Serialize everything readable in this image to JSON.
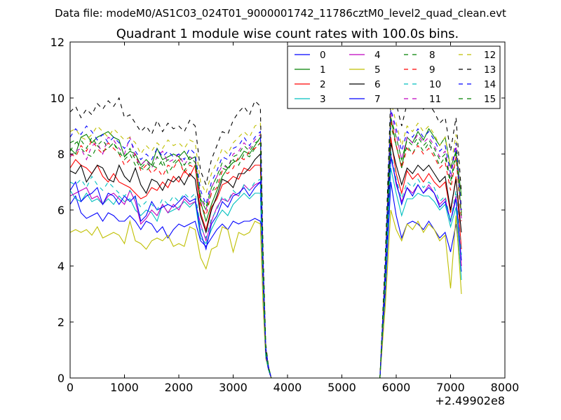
{
  "header": {
    "suptitle": "Data file: modeM0/AS1C03_024T01_9000001742_11786cztM0_level2_quad_clean.evt"
  },
  "chart_data": {
    "type": "line",
    "title": "Quadrant 1 module wise count rates with 100.0s bins.",
    "xlabel": "",
    "ylabel": "",
    "x_offset_label": "+2.49902e8",
    "xlim": [
      0,
      8000
    ],
    "ylim": [
      0,
      12
    ],
    "xticks": [
      0,
      1000,
      2000,
      3000,
      4000,
      5000,
      6000,
      7000,
      8000
    ],
    "yticks": [
      0,
      2,
      4,
      6,
      8,
      10,
      12
    ],
    "grid": false,
    "legend_position": "top-right",
    "legend_columns": 4,
    "series": [
      {
        "name": "0",
        "color": "#0000ff",
        "dash": "solid"
      },
      {
        "name": "1",
        "color": "#008000",
        "dash": "solid"
      },
      {
        "name": "2",
        "color": "#ff0000",
        "dash": "solid"
      },
      {
        "name": "3",
        "color": "#00bfbf",
        "dash": "solid"
      },
      {
        "name": "4",
        "color": "#bf00bf",
        "dash": "solid"
      },
      {
        "name": "5",
        "color": "#bfbf00",
        "dash": "solid"
      },
      {
        "name": "6",
        "color": "#000000",
        "dash": "solid"
      },
      {
        "name": "7",
        "color": "#0000ff",
        "dash": "solid"
      },
      {
        "name": "8",
        "color": "#008000",
        "dash": "dashed"
      },
      {
        "name": "9",
        "color": "#ff0000",
        "dash": "dashed"
      },
      {
        "name": "10",
        "color": "#00bfbf",
        "dash": "dashed"
      },
      {
        "name": "11",
        "color": "#bf00bf",
        "dash": "dashed"
      },
      {
        "name": "12",
        "color": "#bfbf00",
        "dash": "dashed"
      },
      {
        "name": "13",
        "color": "#000000",
        "dash": "dashed"
      },
      {
        "name": "14",
        "color": "#0000ff",
        "dash": "dashed"
      },
      {
        "name": "15",
        "color": "#008000",
        "dash": "dashed"
      }
    ],
    "x_values": [
      0,
      100,
      200,
      300,
      400,
      500,
      600,
      700,
      800,
      900,
      1000,
      1100,
      1200,
      1300,
      1400,
      1500,
      1600,
      1700,
      1800,
      1900,
      2000,
      2100,
      2200,
      2300,
      2400,
      2500,
      2600,
      2700,
      2800,
      2900,
      3000,
      3100,
      3200,
      3300,
      3400,
      3500,
      3550,
      3600,
      3650,
      3700,
      3800,
      4000,
      5000,
      5700,
      5800,
      5900,
      6000,
      6100,
      6200,
      6300,
      6400,
      6500,
      6600,
      6700,
      6800,
      6900,
      7000,
      7100,
      7200
    ],
    "y_values": [
      [
        6.2,
        6.5,
        5.9,
        5.7,
        5.8,
        5.9,
        5.6,
        5.9,
        5.8,
        5.6,
        5.6,
        5.8,
        5.6,
        5.3,
        5.6,
        5.5,
        5.2,
        5.4,
        5.0,
        5.3,
        5.5,
        5.4,
        5.5,
        5.6,
        4.9,
        4.7,
        5.0,
        5.3,
        5.5,
        5.3,
        5.6,
        5.5,
        5.6,
        5.6,
        5.7,
        5.6,
        3.0,
        0.8,
        0.3,
        0,
        0,
        0,
        0,
        0,
        3.0,
        7.0,
        5.8,
        5.0,
        5.5,
        5.6,
        5.5,
        5.3,
        5.6,
        5.3,
        5.0,
        5.2,
        4.5,
        5.5,
        3.8
      ],
      [
        8.2,
        8.0,
        8.6,
        8.7,
        8.4,
        8.6,
        8.7,
        8.8,
        8.6,
        8.5,
        7.9,
        8.1,
        8.0,
        7.6,
        7.8,
        7.6,
        8.2,
        7.8,
        7.9,
        8.0,
        7.9,
        8.1,
        7.8,
        7.9,
        6.3,
        5.6,
        6.2,
        6.7,
        7.2,
        7.5,
        7.7,
        7.8,
        8.1,
        8.0,
        8.3,
        8.6,
        4.0,
        1.0,
        0.4,
        0,
        0,
        0,
        0,
        0,
        3.8,
        9.3,
        8.3,
        7.5,
        8.6,
        8.4,
        8.8,
        8.5,
        8.9,
        8.6,
        8.3,
        8.6,
        7.5,
        8.1,
        6.5
      ],
      [
        7.5,
        7.8,
        7.6,
        7.5,
        7.3,
        7.6,
        7.2,
        7.0,
        7.3,
        7.0,
        6.9,
        6.8,
        6.6,
        6.4,
        6.5,
        6.8,
        6.7,
        7.0,
        6.8,
        7.2,
        7.0,
        7.4,
        7.2,
        7.6,
        5.9,
        5.3,
        6.1,
        6.4,
        6.9,
        7.0,
        7.2,
        7.1,
        7.5,
        7.4,
        7.6,
        7.6,
        3.6,
        0.9,
        0.3,
        0,
        0,
        0,
        0,
        0,
        3.5,
        8.6,
        7.3,
        6.6,
        7.4,
        7.1,
        7.3,
        7.0,
        7.3,
        7.0,
        6.8,
        7.0,
        5.9,
        7.2,
        4.6
      ],
      [
        6.7,
        6.4,
        6.3,
        6.6,
        6.3,
        6.4,
        6.2,
        6.4,
        6.2,
        6.5,
        6.3,
        6.4,
        6.0,
        5.8,
        6.0,
        5.9,
        5.6,
        6.2,
        5.9,
        6.0,
        6.1,
        6.3,
        6.1,
        6.3,
        5.0,
        4.8,
        5.3,
        5.7,
        6.0,
        5.8,
        6.2,
        6.4,
        6.6,
        6.4,
        6.6,
        6.6,
        3.2,
        0.8,
        0.3,
        0,
        0,
        0,
        0,
        0,
        3.2,
        7.5,
        6.6,
        5.8,
        6.4,
        6.4,
        6.6,
        6.5,
        6.5,
        6.3,
        6.0,
        6.2,
        5.4,
        6.1,
        3.5
      ],
      [
        6.5,
        6.6,
        6.7,
        6.8,
        6.4,
        6.5,
        6.2,
        6.5,
        6.6,
        6.4,
        6.2,
        6.7,
        6.3,
        5.5,
        5.7,
        6.0,
        5.8,
        6.2,
        5.9,
        6.2,
        6.0,
        6.4,
        6.2,
        6.3,
        5.5,
        4.9,
        5.6,
        6.1,
        6.4,
        6.3,
        6.6,
        6.5,
        6.9,
        6.7,
        6.9,
        7.0,
        3.4,
        0.8,
        0.3,
        0,
        0,
        0,
        0,
        0,
        3.3,
        8.0,
        6.9,
        6.3,
        6.8,
        6.6,
        6.9,
        6.6,
        6.9,
        6.6,
        6.2,
        6.4,
        5.6,
        6.5,
        4.0
      ],
      [
        5.2,
        5.3,
        5.2,
        5.3,
        5.1,
        5.4,
        5.0,
        5.1,
        5.2,
        5.1,
        4.8,
        5.6,
        4.9,
        4.8,
        4.6,
        4.9,
        5.0,
        4.9,
        5.1,
        4.7,
        4.8,
        4.7,
        5.4,
        5.3,
        4.3,
        3.9,
        4.6,
        4.7,
        5.4,
        5.3,
        4.5,
        5.2,
        5.1,
        5.2,
        5.6,
        5.5,
        2.6,
        0.7,
        0.3,
        0,
        0,
        0,
        0,
        0,
        2.6,
        6.0,
        5.3,
        4.9,
        5.5,
        5.3,
        5.6,
        5.2,
        5.5,
        5.3,
        4.9,
        5.1,
        3.2,
        5.8,
        3.0
      ],
      [
        7.4,
        7.3,
        7.6,
        7.0,
        7.3,
        7.6,
        7.5,
        7.1,
        7.0,
        7.6,
        7.2,
        7.0,
        7.5,
        6.9,
        6.6,
        7.1,
        7.0,
        6.7,
        7.1,
        7.0,
        7.2,
        6.9,
        7.3,
        7.1,
        5.8,
        5.2,
        6.0,
        6.5,
        7.1,
        7.0,
        6.8,
        7.3,
        7.3,
        7.5,
        7.8,
        8.0,
        3.8,
        0.9,
        0.3,
        0,
        0,
        0,
        0,
        0,
        3.6,
        8.4,
        7.6,
        6.9,
        7.5,
        7.3,
        7.6,
        7.4,
        7.6,
        7.3,
        7.0,
        7.2,
        6.0,
        7.1,
        5.2
      ],
      [
        6.7,
        7.0,
        6.3,
        6.5,
        6.6,
        6.8,
        6.2,
        6.6,
        6.5,
        6.2,
        6.5,
        6.3,
        6.5,
        5.6,
        5.8,
        6.3,
        6.0,
        6.1,
        6.2,
        6.1,
        6.3,
        6.5,
        6.3,
        6.4,
        5.2,
        4.6,
        5.5,
        5.8,
        6.3,
        6.1,
        6.5,
        6.6,
        6.8,
        6.5,
        6.8,
        7.0,
        3.4,
        0.8,
        0.3,
        0,
        0,
        0,
        0,
        0,
        3.3,
        7.9,
        7.0,
        6.2,
        6.8,
        6.5,
        6.9,
        6.6,
        6.8,
        6.6,
        6.1,
        6.3,
        5.6,
        6.4,
        4.2
      ],
      [
        8.4,
        8.5,
        8.2,
        8.0,
        7.9,
        8.3,
        8.1,
        8.2,
        8.4,
        8.1,
        7.8,
        8.0,
        7.6,
        7.5,
        7.4,
        7.6,
        7.5,
        7.8,
        7.3,
        7.6,
        7.8,
        7.4,
        7.7,
        7.6,
        6.4,
        6.0,
        6.6,
        7.0,
        7.5,
        7.4,
        7.8,
        7.6,
        8.0,
        7.9,
        8.2,
        8.4,
        4.0,
        1.0,
        0.4,
        0,
        0,
        0,
        0,
        0,
        3.8,
        9.0,
        8.3,
        7.6,
        8.3,
        8.0,
        8.4,
        8.1,
        8.4,
        8.0,
        7.6,
        7.9,
        6.9,
        7.9,
        5.9
      ],
      [
        8.0,
        7.9,
        8.3,
        8.1,
        8.5,
        8.2,
        8.0,
        8.4,
        8.2,
        8.0,
        7.6,
        7.8,
        8.0,
        7.4,
        7.6,
        7.3,
        7.5,
        7.2,
        7.6,
        7.5,
        7.8,
        7.3,
        7.6,
        7.5,
        6.2,
        5.8,
        6.6,
        6.8,
        7.4,
        7.3,
        7.5,
        7.9,
        7.8,
        8.1,
        8.2,
        8.4,
        3.9,
        1.0,
        0.4,
        0,
        0,
        0,
        0,
        0,
        3.8,
        9.2,
        8.3,
        7.5,
        8.2,
        8.0,
        8.3,
        8.0,
        8.2,
        7.9,
        7.5,
        7.7,
        6.7,
        7.9,
        5.6
      ],
      [
        7.0,
        6.9,
        7.1,
        6.8,
        7.2,
        6.9,
        6.7,
        7.0,
        6.8,
        6.6,
        6.5,
        6.7,
        6.4,
        6.1,
        6.3,
        6.2,
        6.0,
        6.4,
        6.2,
        6.5,
        6.3,
        6.6,
        6.4,
        6.6,
        5.4,
        5.0,
        5.7,
        6.0,
        6.5,
        6.3,
        6.7,
        6.5,
        6.9,
        6.7,
        7.0,
        7.1,
        3.4,
        0.8,
        0.3,
        0,
        0,
        0,
        0,
        0,
        3.4,
        8.1,
        7.1,
        6.4,
        7.0,
        6.8,
        7.1,
        6.8,
        7.0,
        6.8,
        6.3,
        6.5,
        5.6,
        6.7,
        4.4
      ],
      [
        7.9,
        8.1,
        8.2,
        7.8,
        8.3,
        8.4,
        8.0,
        8.6,
        8.5,
        8.2,
        8.0,
        8.6,
        7.9,
        7.6,
        7.8,
        7.5,
        7.9,
        8.1,
        7.7,
        7.8,
        8.0,
        7.6,
        7.9,
        7.8,
        6.4,
        6.0,
        6.8,
        7.2,
        7.6,
        7.5,
        8.0,
        8.1,
        8.4,
        8.2,
        8.5,
        8.7,
        4.1,
        1.0,
        0.4,
        0,
        0,
        0,
        0,
        0,
        3.9,
        9.5,
        8.7,
        7.8,
        8.6,
        8.4,
        8.7,
        8.4,
        8.6,
        8.3,
        7.9,
        8.1,
        7.1,
        8.3,
        5.7
      ],
      [
        8.8,
        8.9,
        8.6,
        8.5,
        8.7,
        9.0,
        8.8,
        8.6,
        8.9,
        8.7,
        8.5,
        8.6,
        8.4,
        8.0,
        8.3,
        8.1,
        8.4,
        8.2,
        8.5,
        8.3,
        8.4,
        8.2,
        8.5,
        8.4,
        7.0,
        6.6,
        7.3,
        7.7,
        8.2,
        8.0,
        8.4,
        8.6,
        8.8,
        8.6,
        9.0,
        9.1,
        4.3,
        1.1,
        0.4,
        0,
        0,
        0,
        0,
        0,
        4.1,
        9.9,
        9.1,
        8.3,
        9.0,
        8.8,
        9.1,
        8.8,
        9.0,
        8.7,
        8.3,
        8.6,
        7.5,
        8.7,
        6.1
      ],
      [
        9.5,
        9.7,
        9.3,
        9.6,
        9.4,
        9.8,
        9.6,
        9.9,
        9.7,
        10.0,
        9.3,
        9.4,
        9.1,
        8.8,
        9.0,
        8.7,
        9.2,
        8.8,
        9.1,
        8.9,
        9.0,
        8.8,
        9.2,
        9.0,
        7.4,
        6.9,
        7.8,
        8.3,
        8.8,
        8.7,
        9.2,
        9.5,
        9.7,
        9.4,
        9.9,
        9.7,
        4.6,
        1.2,
        0.4,
        0,
        0,
        0,
        0,
        0,
        4.4,
        10.2,
        9.8,
        9.0,
        9.8,
        9.6,
        9.9,
        9.6,
        9.8,
        9.5,
        9.1,
        9.3,
        8.1,
        9.3,
        6.6
      ],
      [
        8.6,
        8.9,
        8.7,
        9.0,
        8.8,
        8.5,
        8.7,
        8.4,
        8.6,
        8.4,
        8.2,
        8.5,
        8.1,
        7.8,
        8.0,
        7.8,
        8.2,
        7.9,
        8.1,
        7.9,
        8.0,
        7.8,
        8.2,
        8.0,
        6.7,
        6.2,
        7.0,
        7.4,
        7.9,
        7.8,
        8.2,
        8.3,
        8.6,
        8.3,
        8.6,
        8.8,
        4.2,
        1.1,
        0.4,
        0,
        0,
        0,
        0,
        0,
        4.0,
        9.6,
        8.9,
        8.1,
        8.8,
        8.6,
        8.9,
        8.6,
        8.8,
        8.5,
        8.1,
        8.3,
        7.3,
        8.4,
        6.0
      ],
      [
        8.1,
        8.4,
        8.5,
        8.2,
        8.6,
        8.3,
        8.5,
        8.2,
        8.4,
        8.0,
        7.9,
        8.2,
        7.8,
        7.5,
        7.7,
        7.5,
        7.9,
        7.6,
        7.8,
        7.7,
        7.9,
        7.6,
        7.9,
        7.7,
        6.5,
        6.1,
        6.8,
        7.2,
        7.7,
        7.5,
        7.9,
        8.0,
        8.3,
        8.1,
        8.4,
        8.5,
        4.1,
        1.0,
        0.4,
        0,
        0,
        0,
        0,
        0,
        3.9,
        9.3,
        8.6,
        7.8,
        8.5,
        8.3,
        8.6,
        8.3,
        8.5,
        8.2,
        7.8,
        8.0,
        7.0,
        8.1,
        5.8
      ]
    ]
  }
}
